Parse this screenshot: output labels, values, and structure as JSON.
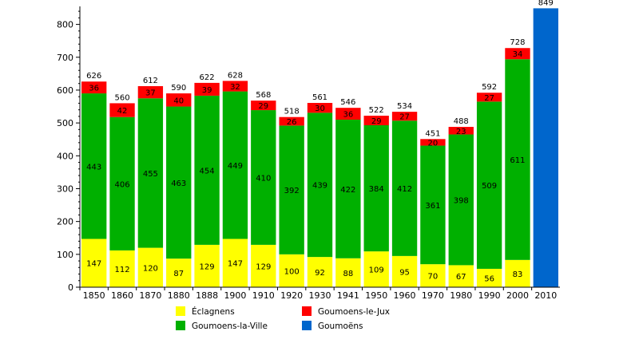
{
  "chart_data": {
    "type": "bar",
    "stacked": true,
    "categories": [
      "1850",
      "1860",
      "1870",
      "1880",
      "1888",
      "1900",
      "1910",
      "1920",
      "1930",
      "1941",
      "1950",
      "1960",
      "1970",
      "1980",
      "1990",
      "2000",
      "2010"
    ],
    "series": [
      {
        "name": "Éclagnens",
        "color": "#ffff00",
        "values": [
          147,
          112,
          120,
          87,
          129,
          147,
          129,
          100,
          92,
          88,
          109,
          95,
          70,
          67,
          56,
          83,
          null
        ]
      },
      {
        "name": "Goumoens-la-Ville",
        "color": "#00b000",
        "values": [
          443,
          406,
          455,
          463,
          454,
          449,
          410,
          392,
          439,
          422,
          384,
          412,
          361,
          398,
          509,
          611,
          null
        ]
      },
      {
        "name": "Goumoens-le-Jux",
        "color": "#ff0000",
        "values": [
          36,
          42,
          37,
          40,
          39,
          32,
          29,
          26,
          30,
          36,
          29,
          27,
          20,
          23,
          27,
          34,
          null
        ]
      },
      {
        "name": "Goumoëns",
        "color": "#0066cc",
        "values": [
          null,
          null,
          null,
          null,
          null,
          null,
          null,
          null,
          null,
          null,
          null,
          null,
          null,
          null,
          null,
          null,
          849
        ]
      }
    ],
    "totals": [
      626,
      560,
      612,
      590,
      622,
      628,
      568,
      518,
      561,
      546,
      522,
      534,
      451,
      488,
      592,
      728,
      849
    ],
    "ylim": [
      0,
      850
    ],
    "yticks": [
      0,
      100,
      200,
      300,
      400,
      500,
      600,
      700,
      800
    ],
    "title": "",
    "xlabel": "",
    "ylabel": "",
    "legend_position": "bottom-center",
    "grid": false
  }
}
